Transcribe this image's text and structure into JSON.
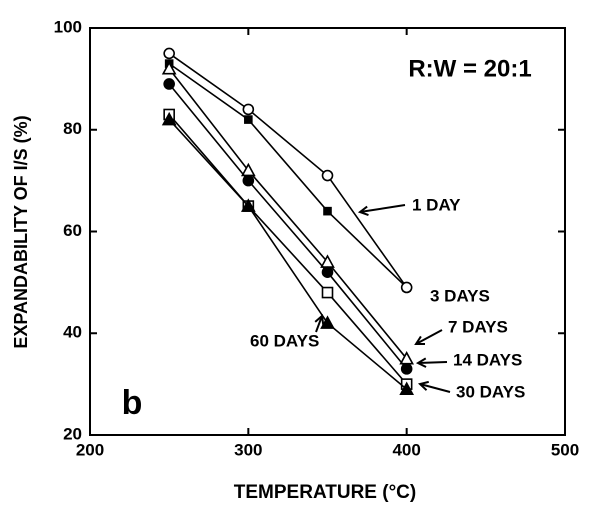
{
  "chart_data": {
    "type": "line",
    "annotations": [
      "R:W = 20:1",
      "b"
    ],
    "xlabel": "TEMPERATURE (°C)",
    "ylabel": "EXPANDABILITY OF I/S (%)",
    "x": [
      250,
      300,
      350,
      400
    ],
    "series": [
      {
        "name": "1 DAY",
        "color": "#000000",
        "marker": "square-filled-small",
        "values": [
          93,
          82,
          64,
          49
        ]
      },
      {
        "name": "3 DAYS",
        "color": "#000000",
        "marker": "circle-open",
        "values": [
          95,
          84,
          71,
          49
        ]
      },
      {
        "name": "7 DAYS",
        "color": "#000000",
        "marker": "triangle-open",
        "values": [
          92,
          72,
          54,
          35
        ]
      },
      {
        "name": "14 DAYS",
        "color": "#000000",
        "marker": "circle-filled",
        "values": [
          89,
          70,
          52,
          33
        ]
      },
      {
        "name": "30 DAYS",
        "color": "#000000",
        "marker": "square-open",
        "values": [
          83,
          65,
          48,
          30
        ]
      },
      {
        "name": "60 DAYS",
        "color": "#000000",
        "marker": "triangle-filled",
        "values": [
          82,
          65,
          42,
          29
        ]
      }
    ],
    "xlim": [
      200,
      500
    ],
    "xticks": [
      200,
      300,
      400,
      500
    ],
    "ylim": [
      20,
      100
    ],
    "yticks": [
      20,
      40,
      60,
      80,
      100
    ]
  }
}
